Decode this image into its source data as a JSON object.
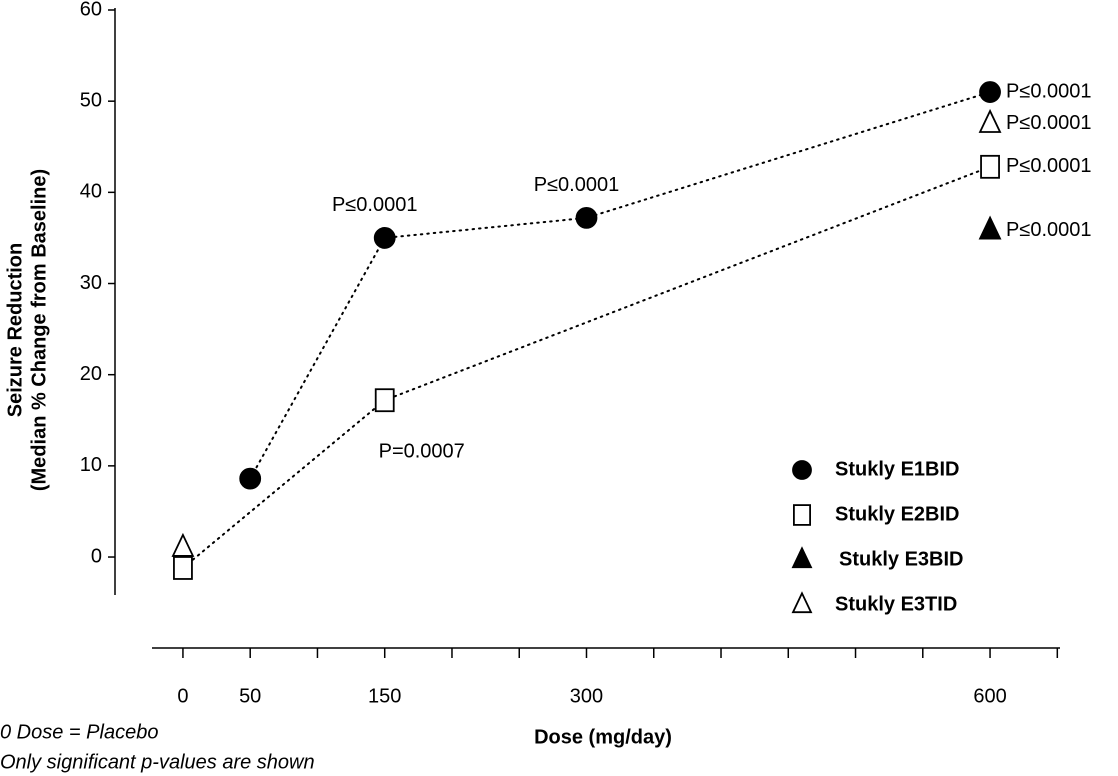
{
  "chart_data": {
    "type": "scatter",
    "ylabel": [
      "Seizure Reduction",
      "(Median % Change from Baseline)"
    ],
    "xlabel": "Dose (mg/day)",
    "notes": [
      "0 Dose = Placebo",
      "Only significant p-values are shown"
    ],
    "xlim": [
      -23,
      652
    ],
    "xticks": [
      0,
      50,
      150,
      300,
      600
    ],
    "xminor_ticks": [
      100,
      200,
      250,
      350,
      400,
      450,
      500,
      550,
      650
    ],
    "ylim": [
      -4,
      60
    ],
    "yticks": [
      0,
      10,
      20,
      30,
      40,
      50,
      60
    ],
    "series": [
      {
        "name": "Stukly E1BID",
        "color": "#000000",
        "marker": "circle",
        "filled": true,
        "line": true,
        "x": [
          50,
          150,
          300,
          600
        ],
        "values": [
          8.6,
          35,
          37.2,
          51
        ],
        "point_labels": [
          null,
          "P≤0.0001",
          "P≤0.0001",
          "P≤0.0001"
        ]
      },
      {
        "name": "Stukly E2BID",
        "color": "#000000",
        "marker": "square",
        "filled": false,
        "line": true,
        "x": [
          0,
          150,
          600
        ],
        "values": [
          -1.2,
          17.2,
          42.8
        ],
        "point_labels": [
          null,
          "P=0.0007",
          "P≤0.0001"
        ]
      },
      {
        "name": "Stukly E3BID",
        "color": "#000000",
        "marker": "triangle",
        "filled": true,
        "line": false,
        "x": [
          600
        ],
        "values": [
          35.8
        ],
        "point_labels": [
          "P≤0.0001"
        ]
      },
      {
        "name": "Stukly E3TID",
        "color": "#000000",
        "marker": "triangle",
        "filled": false,
        "line": false,
        "x": [
          0,
          600
        ],
        "values": [
          1,
          47.5
        ],
        "point_labels": [
          null,
          "P≤0.0001"
        ]
      }
    ]
  }
}
